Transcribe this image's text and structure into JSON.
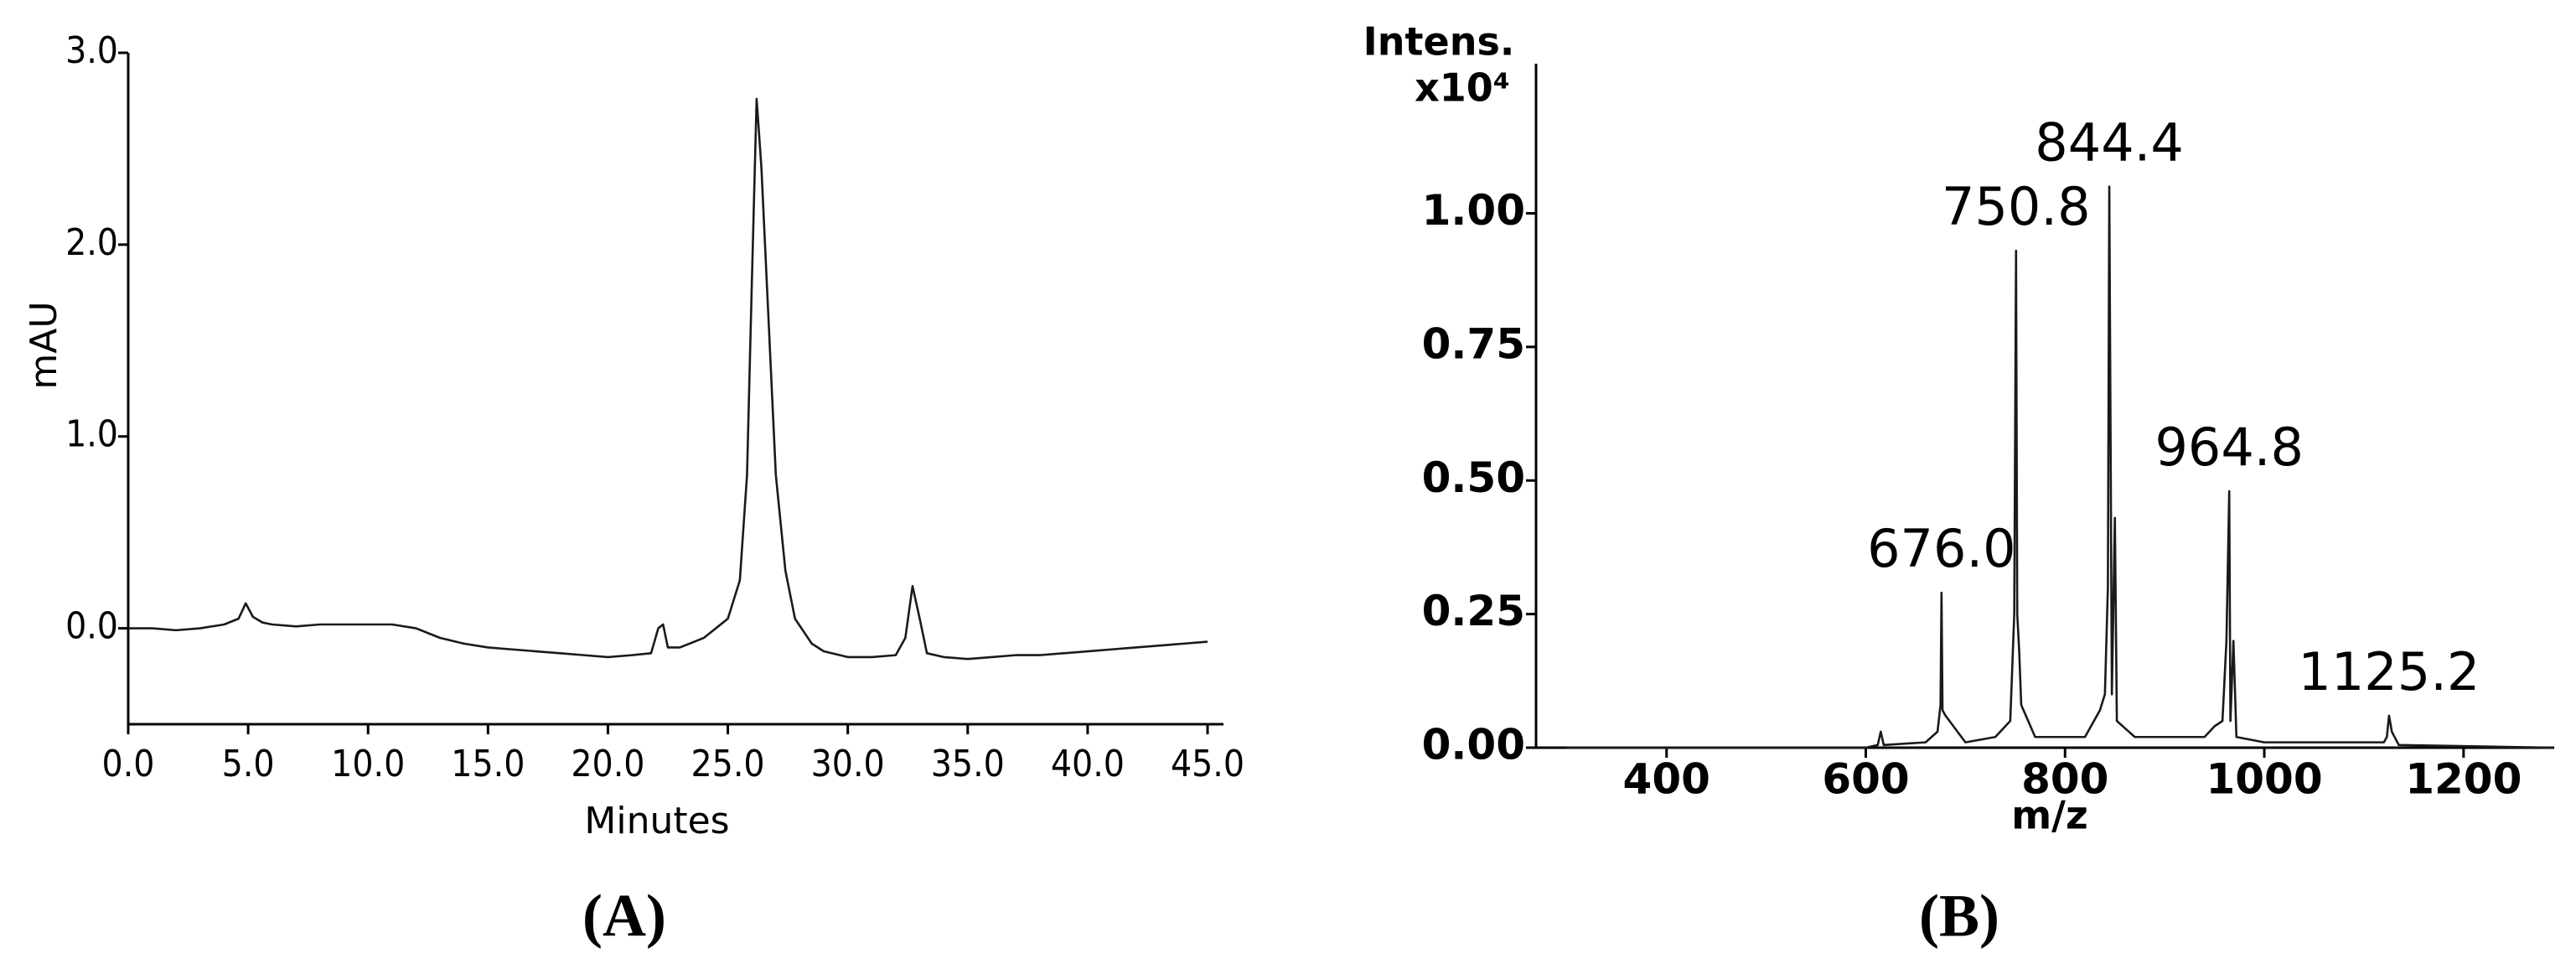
{
  "chart_data": [
    {
      "type": "line",
      "panel_label": "(A)",
      "xlabel": "Minutes",
      "ylabel": "mAU",
      "color": "#1a1a1a",
      "xlim": [
        0,
        45
      ],
      "ylim": [
        -0.5,
        3.0
      ],
      "xticks": [
        {
          "value": 0,
          "label": "0.0"
        },
        {
          "value": 5,
          "label": "5.0"
        },
        {
          "value": 10,
          "label": "10.0"
        },
        {
          "value": 15,
          "label": "15.0"
        },
        {
          "value": 20,
          "label": "20.0"
        },
        {
          "value": 25,
          "label": "25.0"
        },
        {
          "value": 30,
          "label": "30.0"
        },
        {
          "value": 35,
          "label": "35.0"
        },
        {
          "value": 40,
          "label": "40.0"
        },
        {
          "value": 45,
          "label": "45.0"
        }
      ],
      "yticks": [
        {
          "value": 0,
          "label": "0.0"
        },
        {
          "value": 1,
          "label": "1.0"
        },
        {
          "value": 2,
          "label": "2.0"
        },
        {
          "value": 3,
          "label": "3.0"
        }
      ],
      "x": [
        0,
        1,
        2,
        3,
        4,
        4.6,
        4.9,
        5.2,
        5.6,
        6,
        7,
        8,
        9,
        10,
        11,
        12,
        13,
        14,
        15,
        16,
        17,
        18,
        19,
        20,
        21,
        21.8,
        22.1,
        22.3,
        22.5,
        23,
        24,
        24.5,
        25,
        25.5,
        25.8,
        26.0,
        26.2,
        26.4,
        26.7,
        27.0,
        27.4,
        27.8,
        28.5,
        29,
        30,
        31,
        32,
        32.4,
        32.7,
        33.0,
        33.3,
        34,
        35,
        36,
        37,
        38,
        39,
        40,
        41,
        42,
        43,
        44,
        45
      ],
      "values": [
        0.0,
        0.0,
        -0.01,
        0.0,
        0.02,
        0.05,
        0.13,
        0.06,
        0.03,
        0.02,
        0.01,
        0.02,
        0.02,
        0.02,
        0.02,
        0.0,
        -0.05,
        -0.08,
        -0.1,
        -0.11,
        -0.12,
        -0.13,
        -0.14,
        -0.15,
        -0.14,
        -0.13,
        0.0,
        0.02,
        -0.1,
        -0.1,
        -0.05,
        0.0,
        0.05,
        0.25,
        0.8,
        1.8,
        2.76,
        2.4,
        1.6,
        0.8,
        0.3,
        0.05,
        -0.08,
        -0.12,
        -0.15,
        -0.15,
        -0.14,
        -0.05,
        0.22,
        0.05,
        -0.13,
        -0.15,
        -0.16,
        -0.15,
        -0.14,
        -0.14,
        -0.13,
        -0.12,
        -0.11,
        -0.1,
        -0.09,
        -0.08,
        -0.07
      ]
    },
    {
      "type": "line",
      "panel_label": "(B)",
      "xlabel": "m/z",
      "ylabel": "Intens.",
      "yunit": "x10⁴",
      "color": "#1a1a1a",
      "xlim": [
        269,
        1291
      ],
      "ylim": [
        0,
        1.28
      ],
      "xticks": [
        400,
        600,
        800,
        1000,
        1200
      ],
      "yticks": [
        {
          "value": 0,
          "label": "0.00"
        },
        {
          "value": 0.25,
          "label": "0.25"
        },
        {
          "value": 0.5,
          "label": "0.50"
        },
        {
          "value": 0.75,
          "label": "0.75"
        },
        {
          "value": 1,
          "label": "1.00"
        }
      ],
      "x": [
        300,
        600,
        612,
        615,
        618,
        660,
        672,
        675,
        676,
        677,
        680,
        700,
        730,
        745,
        749,
        750.8,
        752,
        754,
        756,
        770,
        820,
        835,
        840,
        843,
        844.4,
        845.5,
        847,
        850,
        852,
        870,
        940,
        950,
        958,
        962,
        964.8,
        966,
        969,
        972,
        1000,
        1120,
        1123,
        1125.2,
        1128,
        1135,
        1290
      ],
      "values": [
        0.0,
        0.0,
        0.005,
        0.03,
        0.005,
        0.01,
        0.03,
        0.08,
        0.29,
        0.07,
        0.06,
        0.01,
        0.02,
        0.05,
        0.25,
        0.93,
        0.25,
        0.18,
        0.08,
        0.02,
        0.02,
        0.07,
        0.1,
        0.3,
        1.05,
        0.65,
        0.1,
        0.43,
        0.05,
        0.02,
        0.02,
        0.04,
        0.05,
        0.2,
        0.48,
        0.05,
        0.2,
        0.02,
        0.01,
        0.01,
        0.02,
        0.06,
        0.03,
        0.005,
        0.0
      ],
      "annotations": [
        {
          "text": "676.0",
          "x": 676.0,
          "y": 0.29
        },
        {
          "text": "750.8",
          "x": 750.8,
          "y": 0.93
        },
        {
          "text": "844.4",
          "x": 844.4,
          "y": 1.05
        },
        {
          "text": "964.8",
          "x": 964.8,
          "y": 0.48
        },
        {
          "text": "1125.2",
          "x": 1125.2,
          "y": 0.06
        }
      ]
    }
  ]
}
